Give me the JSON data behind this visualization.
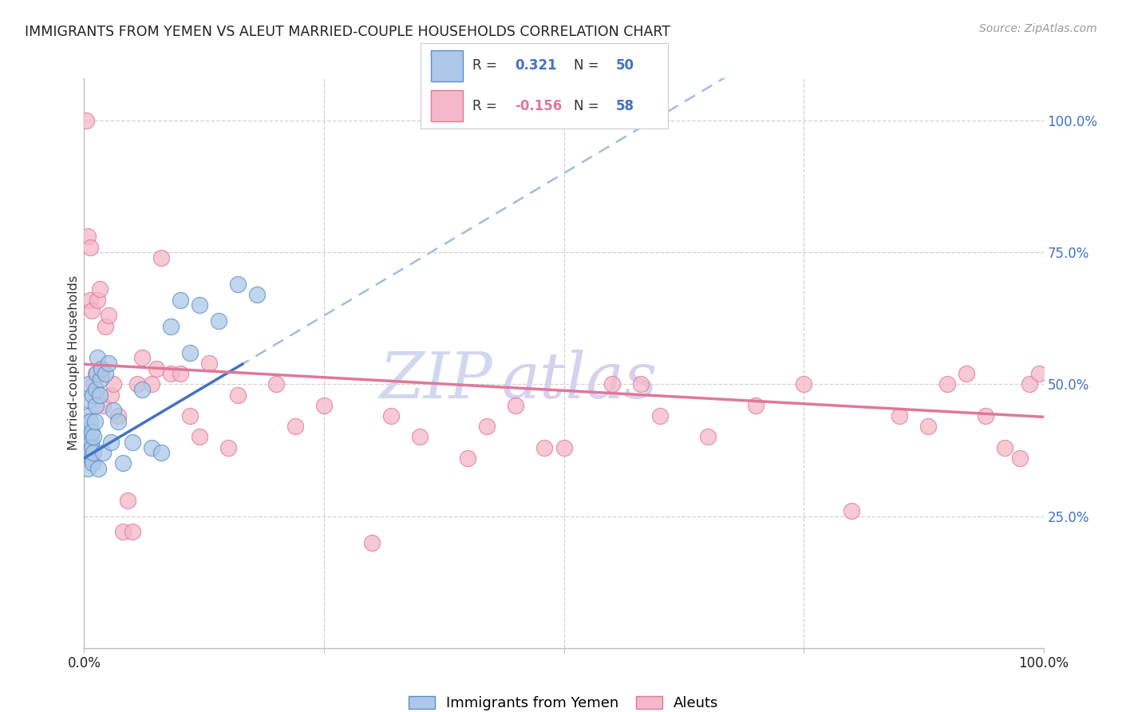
{
  "title": "IMMIGRANTS FROM YEMEN VS ALEUT MARRIED-COUPLE HOUSEHOLDS CORRELATION CHART",
  "source": "Source: ZipAtlas.com",
  "ylabel": "Married-couple Households",
  "legend_label1": "Immigrants from Yemen",
  "legend_label2": "Aleuts",
  "r1_val": "0.321",
  "n1_val": "50",
  "r2_val": "-0.156",
  "n2_val": "58",
  "color_blue_fill": "#adc8e8",
  "color_blue_edge": "#5b8fc9",
  "color_pink_fill": "#f5b8c8",
  "color_pink_edge": "#e07898",
  "line_blue_solid": "#4472c4",
  "line_blue_dash": "#a0bede",
  "line_pink_solid": "#e07898",
  "grid_color": "#d0d0d0",
  "watermark_zip_color": "#d0d8f0",
  "watermark_atlas_color": "#d8d0f0",
  "blue_x": [
    0.001,
    0.002,
    0.002,
    0.003,
    0.003,
    0.003,
    0.004,
    0.004,
    0.004,
    0.005,
    0.005,
    0.005,
    0.006,
    0.006,
    0.006,
    0.007,
    0.007,
    0.008,
    0.008,
    0.009,
    0.009,
    0.01,
    0.01,
    0.011,
    0.012,
    0.012,
    0.013,
    0.014,
    0.015,
    0.016,
    0.017,
    0.018,
    0.02,
    0.022,
    0.025,
    0.028,
    0.03,
    0.035,
    0.04,
    0.05,
    0.06,
    0.07,
    0.08,
    0.09,
    0.1,
    0.11,
    0.12,
    0.14,
    0.16,
    0.18
  ],
  "blue_y": [
    0.37,
    0.41,
    0.43,
    0.36,
    0.39,
    0.42,
    0.34,
    0.37,
    0.4,
    0.44,
    0.47,
    0.5,
    0.37,
    0.4,
    0.43,
    0.36,
    0.39,
    0.38,
    0.41,
    0.35,
    0.48,
    0.37,
    0.4,
    0.43,
    0.46,
    0.49,
    0.52,
    0.55,
    0.34,
    0.48,
    0.51,
    0.53,
    0.37,
    0.52,
    0.54,
    0.39,
    0.45,
    0.43,
    0.35,
    0.39,
    0.49,
    0.38,
    0.37,
    0.61,
    0.66,
    0.56,
    0.65,
    0.62,
    0.69,
    0.67
  ],
  "pink_x": [
    0.002,
    0.004,
    0.006,
    0.006,
    0.008,
    0.01,
    0.012,
    0.014,
    0.016,
    0.018,
    0.02,
    0.022,
    0.025,
    0.028,
    0.03,
    0.035,
    0.04,
    0.045,
    0.05,
    0.055,
    0.06,
    0.07,
    0.075,
    0.08,
    0.09,
    0.1,
    0.11,
    0.12,
    0.13,
    0.15,
    0.16,
    0.2,
    0.22,
    0.25,
    0.3,
    0.32,
    0.35,
    0.4,
    0.42,
    0.45,
    0.48,
    0.5,
    0.55,
    0.58,
    0.6,
    0.65,
    0.7,
    0.75,
    0.8,
    0.85,
    0.88,
    0.9,
    0.92,
    0.94,
    0.96,
    0.975,
    0.985,
    0.995
  ],
  "pink_y": [
    1.0,
    0.78,
    0.66,
    0.76,
    0.64,
    0.5,
    0.52,
    0.66,
    0.68,
    0.52,
    0.46,
    0.61,
    0.63,
    0.48,
    0.5,
    0.44,
    0.22,
    0.28,
    0.22,
    0.5,
    0.55,
    0.5,
    0.53,
    0.74,
    0.52,
    0.52,
    0.44,
    0.4,
    0.54,
    0.38,
    0.48,
    0.5,
    0.42,
    0.46,
    0.2,
    0.44,
    0.4,
    0.36,
    0.42,
    0.46,
    0.38,
    0.38,
    0.5,
    0.5,
    0.44,
    0.4,
    0.46,
    0.5,
    0.26,
    0.44,
    0.42,
    0.5,
    0.52,
    0.44,
    0.38,
    0.36,
    0.5,
    0.52
  ],
  "blue_line_slope": 1.08,
  "blue_line_intercept": 0.36,
  "pink_line_slope": -0.1,
  "pink_line_intercept": 0.538,
  "xlim": [
    0.0,
    1.0
  ],
  "ylim": [
    0.0,
    1.08
  ]
}
